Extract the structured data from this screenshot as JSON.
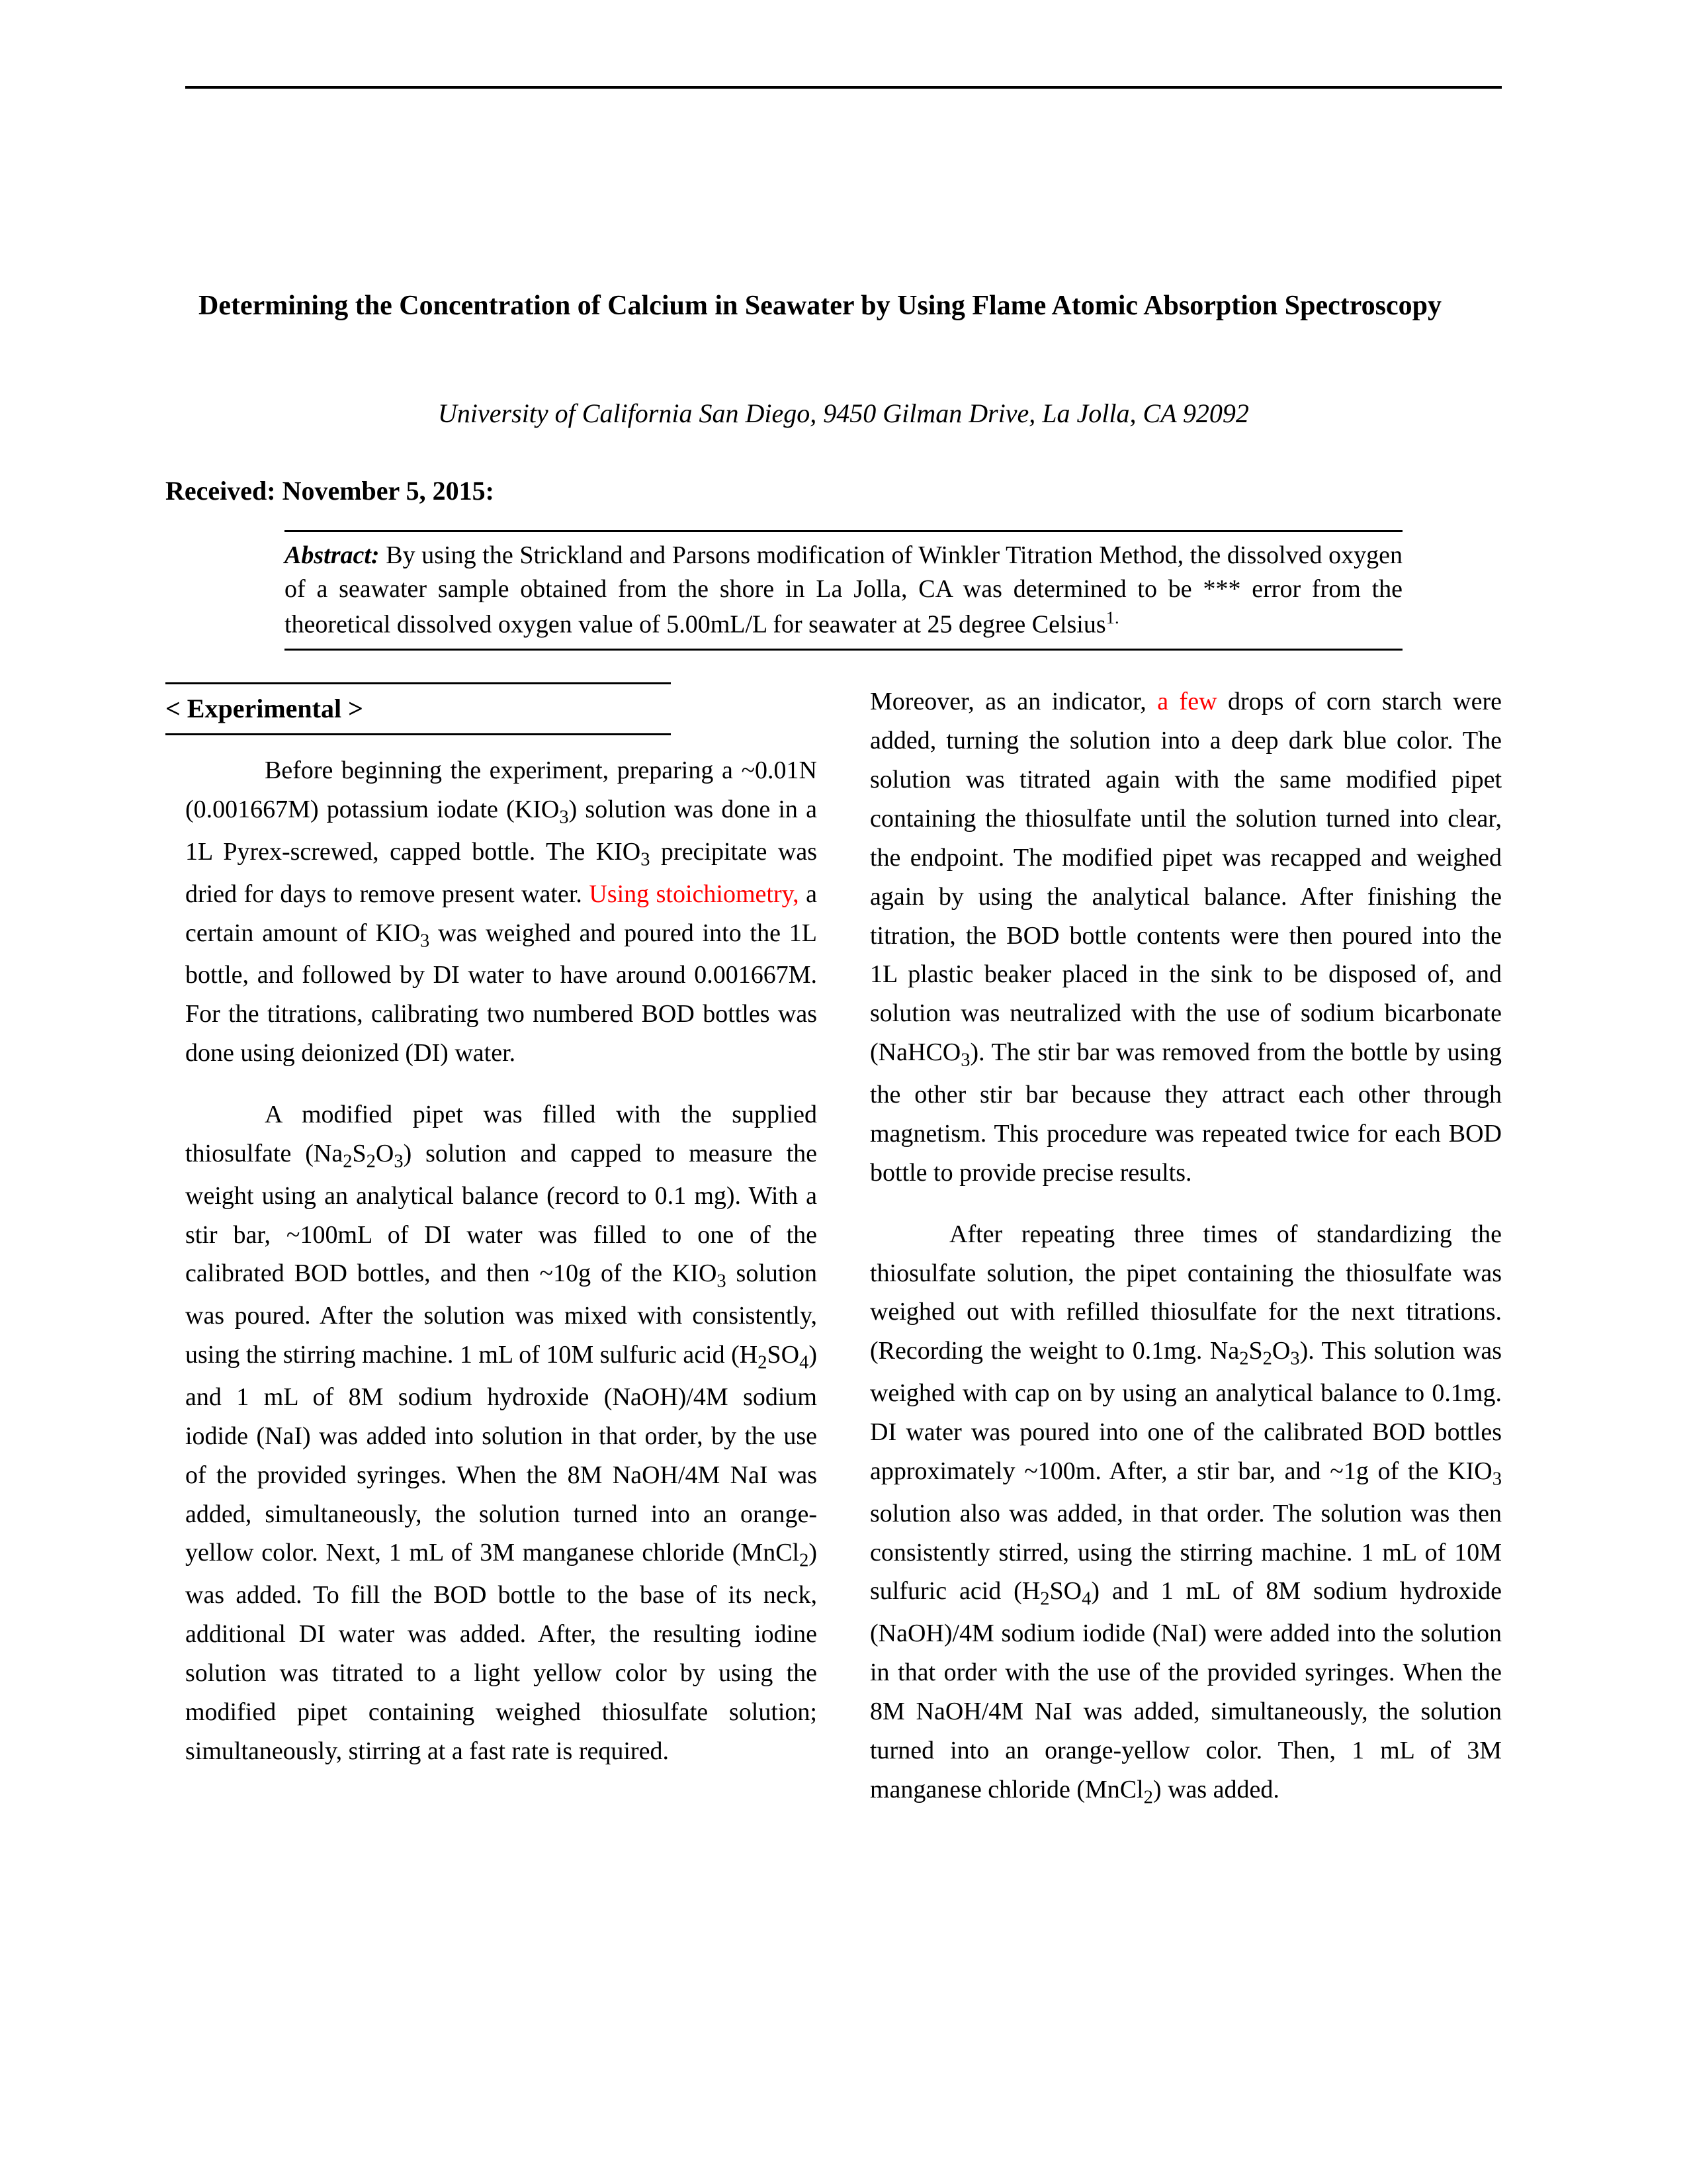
{
  "title": "Determining the Concentration of Calcium in Seawater by Using Flame Atomic Absorption Spectroscopy",
  "affiliation": "University of California San Diego, 9450 Gilman Drive, La Jolla, CA 92092",
  "received": "Received: November 5, 2015:",
  "abstract": {
    "label": "Abstract:",
    "text_before_sup": " By using the Strickland and Parsons modification of Winkler Titration Method, the dissolved oxygen of a seawater sample obtained from the shore in La Jolla, CA was determined to be *** error from the theoretical dissolved oxygen value of 5.00mL/L for seawater at 25 degree Celsius",
    "sup": "1."
  },
  "section_head": "< Experimental >",
  "col1": {
    "p1_a": "Before beginning the experiment, preparing a ~0.01N (0.001667M) potassium iodate (KIO",
    "p1_b": ") solution was done in a 1L Pyrex-screwed, capped bottle. The KIO",
    "p1_c": " precipitate was dried for days to remove present water. ",
    "p1_red": "Using stoichiometry,",
    "p1_d": " a certain amount of KIO",
    "p1_e": " was weighed and poured into the 1L bottle, and followed by DI water to have around 0.001667M. For the titrations, calibrating two numbered BOD bottles was done using deionized (DI) water.",
    "p2_a": "A modified pipet was filled with the supplied thiosulfate (Na",
    "p2_b": "S",
    "p2_c": "O",
    "p2_d": ") solution and capped to measure the weight using an analytical balance (record to 0.1 mg). With a stir bar, ~100mL of DI water was filled to one of the calibrated BOD bottles, and then ~10g of the KIO",
    "p2_e": " solution was poured. After the solution was mixed with consistently, using the stirring machine. 1 mL of 10M sulfuric acid (H",
    "p2_f": "SO",
    "p2_g": ") and 1 mL of 8M sodium hydroxide (NaOH)/4M sodium iodide (NaI) was added into solution in that order, by the use of the provided syringes. When the 8M NaOH/4M NaI was added, simultaneously, the solution turned into an orange-yellow color. Next, 1 mL of 3M manganese chloride (MnCl",
    "p2_h": ") was added. To fill the BOD bottle to the base of its neck, additional DI water was added. After, the resulting iodine solution was titrated to a light yellow color by using the modified pipet containing weighed thiosulfate solution; simultaneously, stirring at a fast rate is required. "
  },
  "col2": {
    "p1_a": "Moreover, as an indicator, ",
    "p1_red": "a few",
    "p1_b": " drops of corn starch were added, turning the solution into a deep dark blue color. The solution was titrated again with the same modified pipet containing the thiosulfate until the solution turned into clear, the endpoint. The modified pipet was recapped and weighed again by using the analytical balance. After finishing the titration, the BOD bottle contents were then poured into the 1L plastic beaker placed in the sink to be disposed of, and solution was neutralized with the use of sodium bicarbonate (NaHCO",
    "p1_c": "). The stir bar was removed from the bottle by using the other stir bar because they attract each other through magnetism. This procedure was repeated twice for each BOD bottle to provide precise results.",
    "p2_a": "After repeating three times of standardizing the thiosulfate solution, the pipet containing the thiosulfate was weighed out with refilled thiosulfate for the next titrations. (Recording the weight to 0.1mg. Na",
    "p2_b": "S",
    "p2_c": "O",
    "p2_d": "). This solution was weighed with cap on by using an analytical balance to 0.1mg. DI water was poured into one of the calibrated BOD bottles approximately ~100m. After, a stir bar, and ~1g of the KIO",
    "p2_e": " solution also was added, in that order. The solution was then consistently stirred, using the stirring machine. 1 mL of 10M sulfuric acid (H",
    "p2_f": "SO",
    "p2_g": ") and 1 mL of 8M sodium hydroxide (NaOH)/4M sodium iodide (NaI) were added into the solution in that order with the use of the provided syringes. When the 8M NaOH/4M NaI was added, simultaneously, the solution turned into an orange-yellow color. Then, 1 mL of 3M manganese chloride (MnCl",
    "p2_h": ") was added. "
  },
  "sub": {
    "2": "2",
    "3": "3",
    "4": "4"
  }
}
